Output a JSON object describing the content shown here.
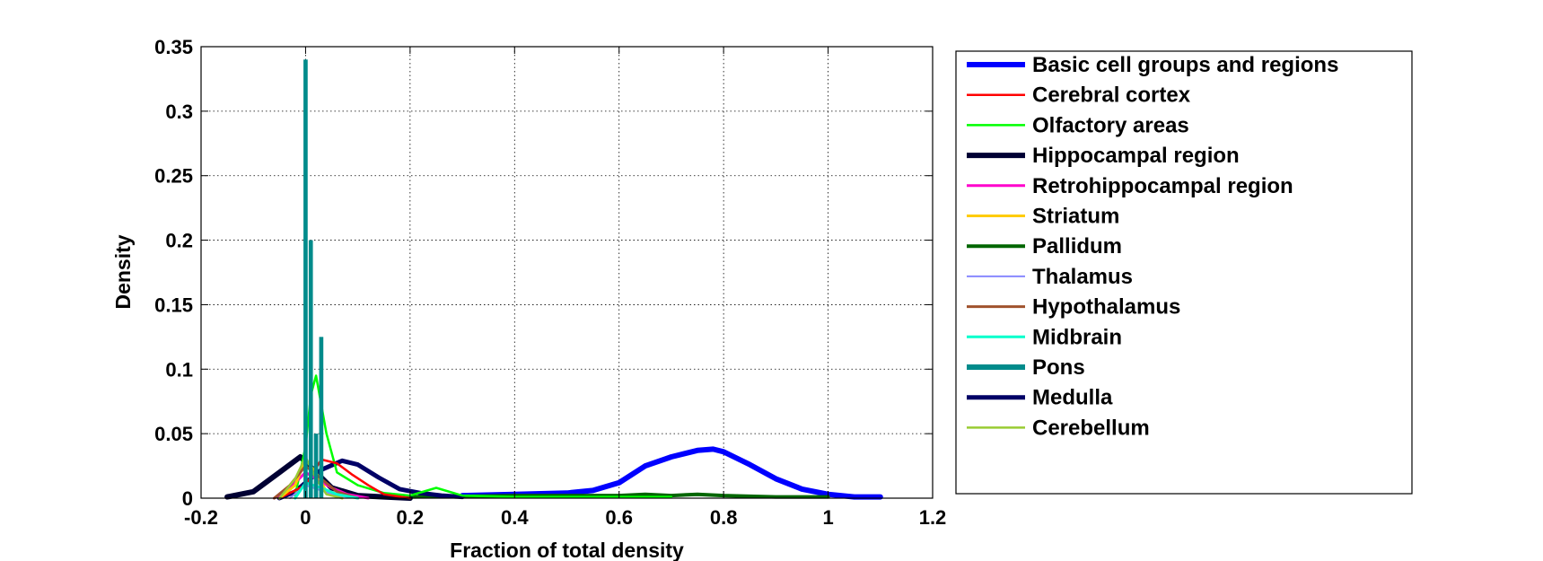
{
  "chart_data": {
    "type": "line",
    "title": "",
    "xlabel": "Fraction of total density",
    "ylabel": "Density",
    "xlim": [
      -0.2,
      1.2
    ],
    "ylim": [
      0,
      0.35
    ],
    "xticks": [
      -0.2,
      0,
      0.2,
      0.4,
      0.6,
      0.8,
      1,
      1.2
    ],
    "xtick_labels": [
      "-0.2",
      "0",
      "0.2",
      "0.4",
      "0.6",
      "0.8",
      "1",
      "1.2"
    ],
    "yticks": [
      0,
      0.05,
      0.1,
      0.15,
      0.2,
      0.25,
      0.3,
      0.35
    ],
    "ytick_labels": [
      "0",
      "0.05",
      "0.1",
      "0.15",
      "0.2",
      "0.25",
      "0.3",
      "0.35"
    ],
    "grid": true,
    "legend_position": "outside-right",
    "series": [
      {
        "name": "Basic cell groups and regions",
        "color": "#0000ff",
        "x": [
          0.3,
          0.4,
          0.5,
          0.55,
          0.6,
          0.65,
          0.7,
          0.75,
          0.78,
          0.8,
          0.85,
          0.9,
          0.95,
          1.0,
          1.05,
          1.1
        ],
        "y": [
          0.002,
          0.003,
          0.004,
          0.006,
          0.012,
          0.025,
          0.032,
          0.037,
          0.038,
          0.036,
          0.026,
          0.015,
          0.007,
          0.003,
          0.001,
          0.001
        ]
      },
      {
        "name": "Cerebral cortex",
        "color": "#ff0000",
        "x": [
          -0.05,
          0,
          0.03,
          0.06,
          0.09,
          0.12,
          0.15,
          0.2
        ],
        "y": [
          0,
          0.01,
          0.03,
          0.027,
          0.018,
          0.01,
          0.003,
          0
        ]
      },
      {
        "name": "Olfactory areas",
        "color": "#00ff00",
        "x": [
          -0.02,
          0,
          0.01,
          0.02,
          0.04,
          0.06,
          0.1,
          0.15,
          0.2,
          0.25,
          0.3,
          0.4,
          0.5,
          0.6,
          0.7
        ],
        "y": [
          0.002,
          0.04,
          0.08,
          0.095,
          0.05,
          0.02,
          0.01,
          0.004,
          0.002,
          0.008,
          0.002,
          0.001,
          0.001,
          0.001,
          0.001
        ]
      },
      {
        "name": "Hippocampal region",
        "color": "#000033",
        "x": [
          -0.15,
          -0.1,
          -0.05,
          -0.01,
          0.02,
          0.05,
          0.1,
          0.15,
          0.2
        ],
        "y": [
          0.001,
          0.005,
          0.02,
          0.032,
          0.02,
          0.008,
          0.002,
          0.001,
          0
        ]
      },
      {
        "name": "Retrohippocampal region",
        "color": "#ff00cc",
        "x": [
          -0.06,
          -0.03,
          0,
          0.02,
          0.05,
          0.08,
          0.12
        ],
        "y": [
          0,
          0.008,
          0.02,
          0.015,
          0.008,
          0.003,
          0
        ]
      },
      {
        "name": "Striatum",
        "color": "#ffcc00",
        "x": [
          -0.05,
          -0.02,
          0,
          0.02,
          0.04,
          0.07
        ],
        "y": [
          0,
          0.01,
          0.03,
          0.02,
          0.005,
          0
        ]
      },
      {
        "name": "Pallidum",
        "color": "#006600",
        "x": [
          0.2,
          0.4,
          0.6,
          0.65,
          0.7,
          0.75,
          0.8,
          0.9,
          1.0
        ],
        "y": [
          0.001,
          0.002,
          0.002,
          0.003,
          0.002,
          0.003,
          0.002,
          0.001,
          0.001
        ]
      },
      {
        "name": "Thalamus",
        "color": "#8888ff",
        "x": [
          -0.03,
          0,
          0.03,
          0.06,
          0.1
        ],
        "y": [
          0,
          0.01,
          0.006,
          0.002,
          0
        ]
      },
      {
        "name": "Hypothalamus",
        "color": "#a0522d",
        "x": [
          -0.06,
          -0.03,
          0,
          0.03,
          0.06,
          0.1
        ],
        "y": [
          0,
          0.01,
          0.025,
          0.015,
          0.005,
          0
        ]
      },
      {
        "name": "Midbrain",
        "color": "#00ffcc",
        "x": [
          -0.02,
          0,
          0.03,
          0.06,
          0.1
        ],
        "y": [
          0,
          0.012,
          0.008,
          0.003,
          0
        ]
      },
      {
        "name": "Pons",
        "color": "#008b8b",
        "bars": {
          "x": [
            0,
            0.01,
            0.02,
            0.03
          ],
          "y": [
            0.34,
            0.2,
            0.05,
            0.125
          ],
          "width": 0.008
        }
      },
      {
        "name": "Medulla",
        "color": "#000066",
        "x": [
          -0.05,
          -0.02,
          0,
          0.03,
          0.07,
          0.1,
          0.14,
          0.18,
          0.22,
          0.26,
          0.3
        ],
        "y": [
          0,
          0.005,
          0.012,
          0.022,
          0.029,
          0.026,
          0.016,
          0.007,
          0.004,
          0.002,
          0.001
        ]
      },
      {
        "name": "Cerebellum",
        "color": "#99cc33",
        "x": [
          -0.05,
          -0.02,
          0,
          0.02,
          0.04,
          0.07
        ],
        "y": [
          0,
          0.015,
          0.032,
          0.015,
          0.003,
          0
        ]
      }
    ]
  }
}
